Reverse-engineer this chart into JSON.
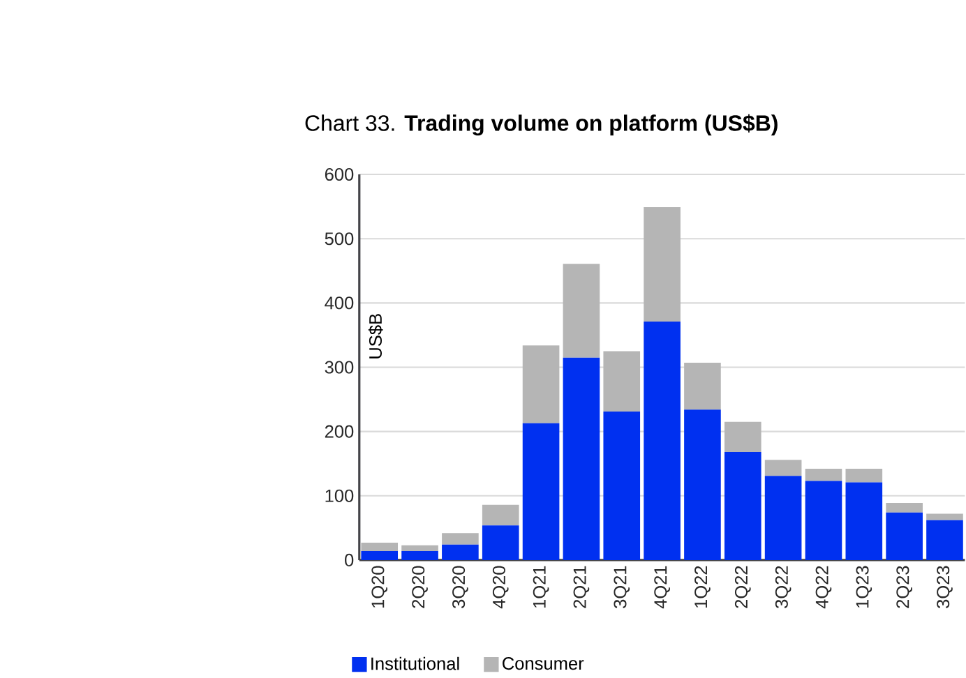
{
  "chart_data": {
    "type": "bar",
    "title": "Chart 33.  **Trading volume on platform (US$B)**",
    "ylabel": "US$B",
    "categories": [
      "1Q20",
      "2Q20",
      "3Q20",
      "4Q20",
      "1Q21",
      "2Q21",
      "3Q21",
      "4Q21",
      "1Q22",
      "2Q22",
      "3Q22",
      "4Q22",
      "1Q23",
      "2Q23",
      "3Q23"
    ],
    "series": [
      {
        "name": "Institutional",
        "color": "#0030f0",
        "values": [
          14,
          14,
          24,
          54,
          213,
          315,
          231,
          371,
          234,
          168,
          131,
          123,
          121,
          74,
          62
        ]
      },
      {
        "name": "Consumer",
        "color": "#b5b5b5",
        "values": [
          13,
          9,
          18,
          32,
          121,
          146,
          94,
          178,
          73,
          47,
          25,
          19,
          21,
          15,
          10
        ]
      }
    ],
    "stacked": true,
    "ylim": [
      0,
      600
    ],
    "yticks": [
      0,
      100,
      200,
      300,
      400,
      500,
      600
    ],
    "grid": "y",
    "legend": "bottom"
  }
}
